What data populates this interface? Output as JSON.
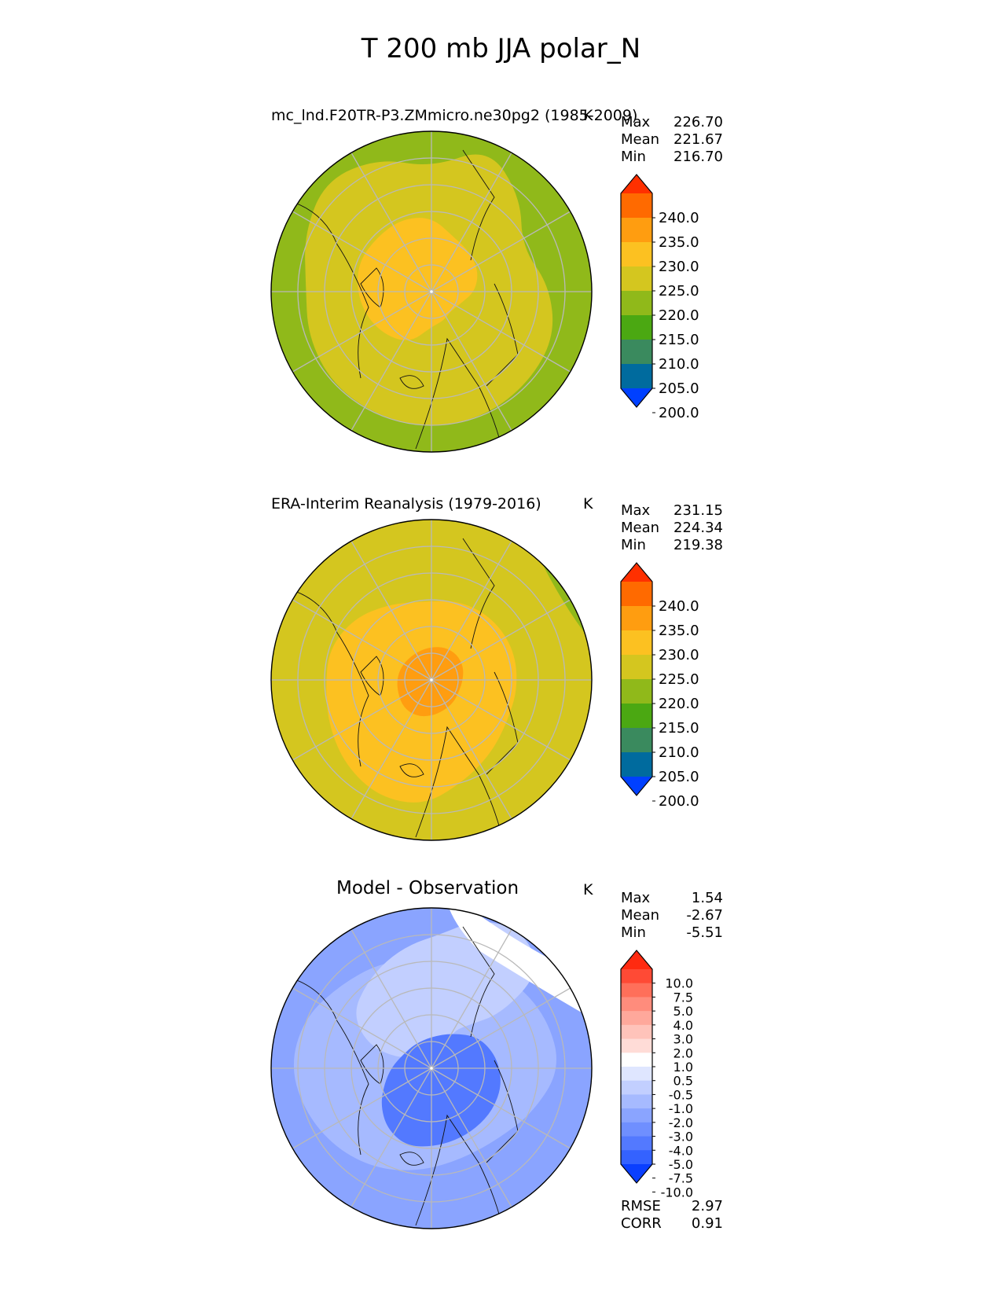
{
  "figure": {
    "title": "T 200 mb JJA polar_N"
  },
  "chart_data": [
    {
      "type": "heatmap",
      "projection": "north polar stereographic",
      "title": "mc_lnd.F20TR-P3.ZMmicro.ne30pg2 (1985-2009)",
      "units": "K",
      "stats": [
        {
          "label": "Max",
          "value": "226.70"
        },
        {
          "label": "Mean",
          "value": "221.67"
        },
        {
          "label": "Min",
          "value": "216.70"
        }
      ],
      "colorbar": {
        "ticks": [
          "240.0",
          "235.0",
          "230.0",
          "225.0",
          "220.0",
          "215.0",
          "210.0",
          "205.0",
          "200.0"
        ],
        "colors": [
          "#ff3000",
          "#ff6a00",
          "#ff9d10",
          "#fcc121",
          "#d4c61f",
          "#90b91a",
          "#4ba812",
          "#3a8a5e",
          "#006b9e",
          "#0040ff"
        ],
        "extend": "both"
      },
      "fields": {
        "base": "#d4c61f",
        "outer": "#90b91a",
        "inner": "#fcc121"
      }
    },
    {
      "type": "heatmap",
      "projection": "north polar stereographic",
      "title": "ERA-Interim Reanalysis (1979-2016)",
      "units": "K",
      "stats": [
        {
          "label": "Max",
          "value": "231.15"
        },
        {
          "label": "Mean",
          "value": "224.34"
        },
        {
          "label": "Min",
          "value": "219.38"
        }
      ],
      "colorbar": {
        "ticks": [
          "240.0",
          "235.0",
          "230.0",
          "225.0",
          "220.0",
          "215.0",
          "210.0",
          "205.0",
          "200.0"
        ],
        "colors": [
          "#ff3000",
          "#ff6a00",
          "#ff9d10",
          "#fcc121",
          "#d4c61f",
          "#90b91a",
          "#4ba812",
          "#3a8a5e",
          "#006b9e",
          "#0040ff"
        ],
        "extend": "both"
      },
      "fields": {
        "base": "#d4c61f",
        "inner": "#fcc121",
        "core": "#ff9d10",
        "outer": "#90b91a"
      }
    },
    {
      "type": "heatmap",
      "projection": "north polar stereographic",
      "title": "Model - Observation",
      "units": "K",
      "stats": [
        {
          "label": "Max",
          "value": "1.54"
        },
        {
          "label": "Mean",
          "value": "-2.67"
        },
        {
          "label": "Min",
          "value": "-5.51"
        }
      ],
      "colorbar": {
        "ticks": [
          "10.0",
          "7.5",
          "5.0",
          "4.0",
          "3.0",
          "2.0",
          "1.0",
          "0.5",
          "-0.5",
          "-1.0",
          "-2.0",
          "-3.0",
          "-4.0",
          "-5.0",
          "-7.5",
          "-10.0"
        ],
        "colors": [
          "#ff2a10",
          "#ff4a35",
          "#ff6f5a",
          "#ff8c7c",
          "#ffa89b",
          "#ffc3ba",
          "#ffdcd7",
          "#ffffff",
          "#dfe6ff",
          "#c2cfff",
          "#a6baff",
          "#8aa4ff",
          "#6f8fff",
          "#5379ff",
          "#3462ff",
          "#0a3fff"
        ],
        "extend": "both"
      },
      "fields": {
        "base": "#8aa4ff",
        "mid": "#a6baff",
        "light": "#c2cfff",
        "dark": "#5379ff",
        "white": "#ffffff",
        "pink": "#ffdcd7"
      },
      "summary": [
        {
          "label": "RMSE",
          "value": "2.97"
        },
        {
          "label": "CORR",
          "value": "0.91"
        }
      ]
    }
  ]
}
